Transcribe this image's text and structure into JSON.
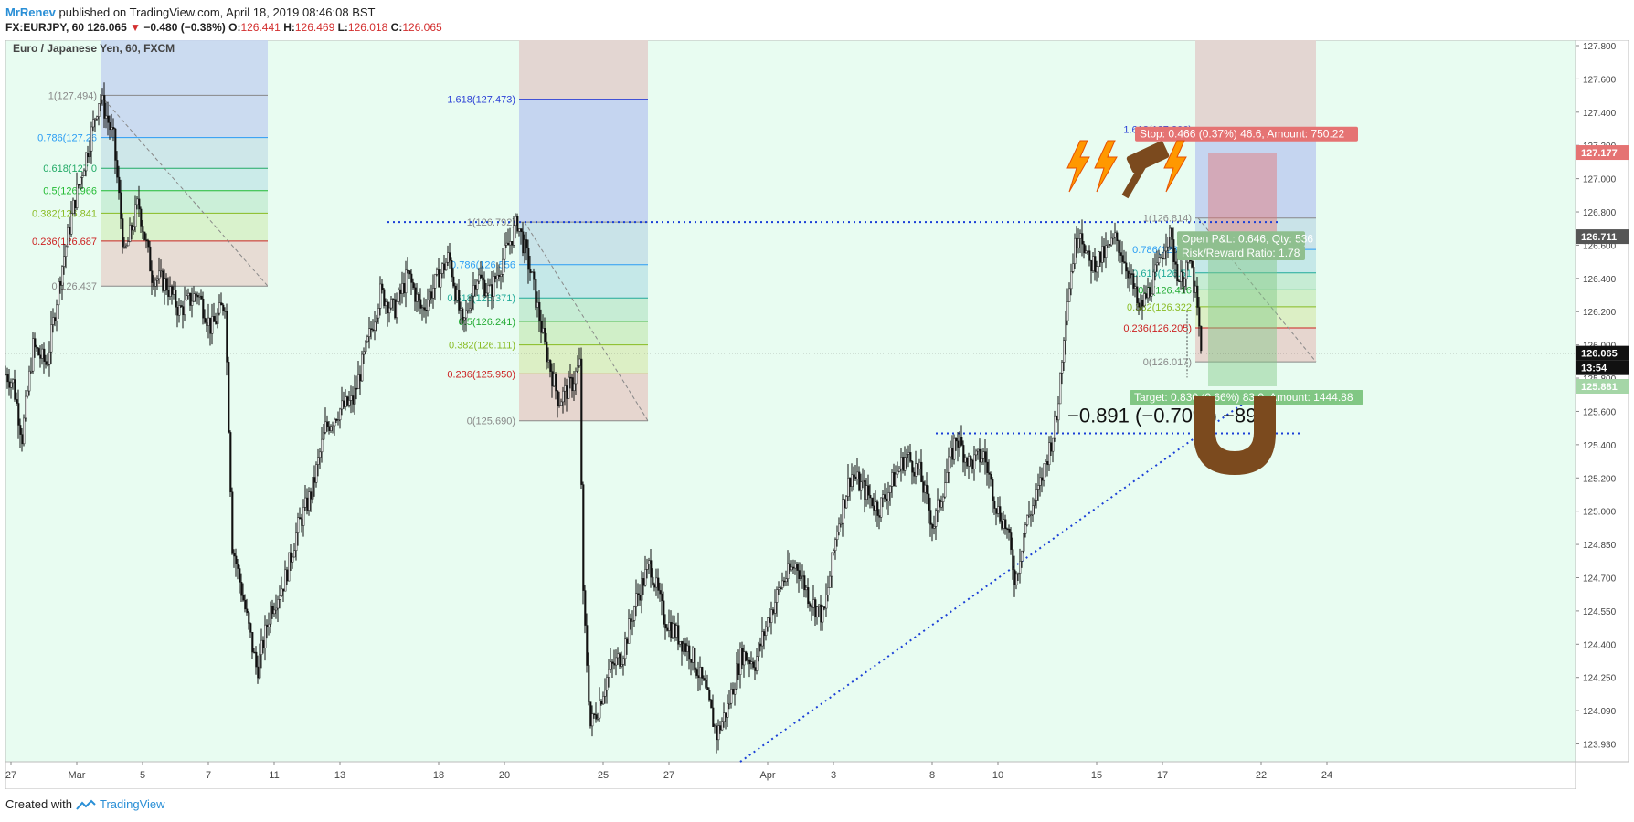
{
  "header": {
    "author": "MrRenev",
    "published": "published on TradingView.com, April 18, 2019 08:46:08 BST",
    "symbol": "FX:EURJPY, 60",
    "last": "126.065",
    "change": "−0.480 (−0.38%)",
    "o_label": "O:",
    "o": "126.441",
    "h_label": "H:",
    "h": "126.469",
    "l_label": "L:",
    "l": "126.018",
    "c_label": "C:",
    "c": "126.065"
  },
  "chart_data": {
    "type": "line",
    "title": "Euro / Japanese Yen, 60, FXCM",
    "colors": {
      "bg": "#e8fcf1",
      "candle": "#111111",
      "blue_dots": "#1a3fd6",
      "price_tag": "#111111"
    },
    "y_range": [
      123.8,
      127.8
    ],
    "y_ticks": [
      "127.800",
      "127.600",
      "127.400",
      "127.200",
      "127.000",
      "126.800",
      "126.600",
      "126.400",
      "126.200",
      "126.000",
      "125.800",
      "125.600",
      "125.400",
      "125.200",
      "125.000",
      "124.850",
      "124.700",
      "124.550",
      "124.400",
      "124.250",
      "124.090",
      "123.930"
    ],
    "x_ticks": [
      "27",
      "Mar",
      "5",
      "7",
      "11",
      "13",
      "18",
      "20",
      "25",
      "27",
      "Apr",
      "3",
      "8",
      "10",
      "15",
      "17",
      "22",
      "24"
    ],
    "price_anchors": [
      [
        0,
        125.95
      ],
      [
        8,
        125.9
      ],
      [
        18,
        125.6
      ],
      [
        30,
        126.1
      ],
      [
        45,
        126.0
      ],
      [
        60,
        126.5
      ],
      [
        75,
        126.9
      ],
      [
        90,
        127.2
      ],
      [
        103,
        127.494
      ],
      [
        118,
        127.25
      ],
      [
        130,
        126.6
      ],
      [
        145,
        126.9
      ],
      [
        160,
        126.5
      ],
      [
        175,
        126.45
      ],
      [
        190,
        126.3
      ],
      [
        210,
        126.4
      ],
      [
        225,
        126.2
      ],
      [
        240,
        126.35
      ],
      [
        248,
        125.0
      ],
      [
        260,
        124.7
      ],
      [
        275,
        124.3
      ],
      [
        290,
        124.65
      ],
      [
        305,
        124.8
      ],
      [
        320,
        125.1
      ],
      [
        335,
        125.3
      ],
      [
        350,
        125.65
      ],
      [
        365,
        125.75
      ],
      [
        380,
        125.8
      ],
      [
        395,
        126.1
      ],
      [
        410,
        126.4
      ],
      [
        425,
        126.3
      ],
      [
        440,
        126.5
      ],
      [
        455,
        126.3
      ],
      [
        470,
        126.45
      ],
      [
        485,
        126.6
      ],
      [
        500,
        126.2
      ],
      [
        515,
        126.5
      ],
      [
        530,
        126.4
      ],
      [
        545,
        126.6
      ],
      [
        560,
        126.792
      ],
      [
        575,
        126.5
      ],
      [
        590,
        126.1
      ],
      [
        605,
        125.8
      ],
      [
        620,
        125.9
      ],
      [
        628,
        126.0
      ],
      [
        632,
        124.7
      ],
      [
        640,
        124.0
      ],
      [
        648,
        124.1
      ],
      [
        660,
        124.3
      ],
      [
        675,
        124.4
      ],
      [
        690,
        124.7
      ],
      [
        705,
        124.9
      ],
      [
        720,
        124.6
      ],
      [
        735,
        124.5
      ],
      [
        750,
        124.4
      ],
      [
        765,
        124.2
      ],
      [
        778,
        123.95
      ],
      [
        790,
        124.1
      ],
      [
        805,
        124.4
      ],
      [
        820,
        124.35
      ],
      [
        835,
        124.6
      ],
      [
        850,
        124.8
      ],
      [
        865,
        124.9
      ],
      [
        880,
        124.7
      ],
      [
        895,
        124.6
      ],
      [
        910,
        125.1
      ],
      [
        925,
        125.4
      ],
      [
        940,
        125.3
      ],
      [
        955,
        125.2
      ],
      [
        970,
        125.35
      ],
      [
        985,
        125.5
      ],
      [
        1000,
        125.4
      ],
      [
        1015,
        125.1
      ],
      [
        1025,
        125.3
      ],
      [
        1040,
        125.6
      ],
      [
        1055,
        125.45
      ],
      [
        1070,
        125.5
      ],
      [
        1085,
        125.2
      ],
      [
        1095,
        125.1
      ],
      [
        1105,
        124.8
      ],
      [
        1115,
        125.1
      ],
      [
        1130,
        125.3
      ],
      [
        1140,
        125.5
      ],
      [
        1150,
        125.7
      ],
      [
        1160,
        126.3
      ],
      [
        1168,
        126.6
      ],
      [
        1175,
        126.78
      ],
      [
        1185,
        126.55
      ],
      [
        1200,
        126.6
      ],
      [
        1215,
        126.7
      ],
      [
        1230,
        126.5
      ],
      [
        1240,
        126.3
      ],
      [
        1250,
        126.4
      ],
      [
        1262,
        126.55
      ],
      [
        1272,
        126.75
      ],
      [
        1285,
        126.45
      ],
      [
        1295,
        126.6
      ],
      [
        1303,
        126.35
      ],
      [
        1308,
        126.065
      ]
    ],
    "fib_levels": [
      {
        "ratio": "1",
        "price": 127.494,
        "left": "1(127.494)"
      },
      {
        "ratio": "0.786",
        "price": 127.26,
        "left": "0.786(127.26"
      },
      {
        "ratio": "0.618",
        "price": 127.09,
        "left": "0.618(127.0"
      },
      {
        "ratio": "0.5",
        "price": 126.966,
        "left": "0.5(126.966"
      },
      {
        "ratio": "0.382",
        "price": 126.841,
        "left": "0.382(126.841"
      },
      {
        "ratio": "0.236",
        "price": 126.687,
        "left": "0.236(126.687"
      },
      {
        "ratio": "0",
        "price": 126.437,
        "left": "0(126.437"
      }
    ],
    "fib2": [
      {
        "ratio": "1.618",
        "price": 127.473,
        "label": "1.618(127.473)"
      },
      {
        "ratio": "1",
        "price": 126.792,
        "label": "1(126.792)"
      },
      {
        "ratio": "0.786",
        "price": 126.556,
        "label": "0.786(126.556"
      },
      {
        "ratio": "0.618",
        "price": 126.371,
        "label": "0.618(126.371)"
      },
      {
        "ratio": "0.5",
        "price": 126.241,
        "label": "0.5(126.241)"
      },
      {
        "ratio": "0.382",
        "price": 126.111,
        "label": "0.382(126.111)"
      },
      {
        "ratio": "0.236",
        "price": 125.95,
        "label": "0.236(125.950)"
      },
      {
        "ratio": "0",
        "price": 125.69,
        "label": "0(125.690)"
      }
    ],
    "fib3": [
      {
        "ratio": "1.618",
        "price": 127.306,
        "label": "1.618(127.306)"
      },
      {
        "ratio": "1",
        "price": 126.814,
        "label": "1(126.814)"
      },
      {
        "ratio": "0.786",
        "price": 126.64,
        "label": "0.786(126.64"
      },
      {
        "ratio": "0.618",
        "price": 126.51,
        "label": "0.618(126.51"
      },
      {
        "ratio": "0.5",
        "price": 126.416,
        "label": "0.5(126.416"
      },
      {
        "ratio": "0.382",
        "price": 126.322,
        "label": "0.382(126.322"
      },
      {
        "ratio": "0.236",
        "price": 126.205,
        "label": "0.236(126.205)"
      },
      {
        "ratio": "0",
        "price": 126.017,
        "label": "0(126.017)"
      }
    ],
    "position": {
      "stop_label": "Stop: 0.466 (0.37%) 46.6, Amount: 750.22",
      "open_pl_label": "Open P&L: 0.646, Qty: 536",
      "rr_label": "Risk/Reward Ratio: 1.78",
      "target_label": "Target: 0.830 (0.66%) 83.0, Amount: 1444.88",
      "stop_price": 127.177,
      "entry_price": 126.711,
      "target_price": 125.881
    },
    "price_tags": [
      {
        "price": 127.177,
        "label": "127.177",
        "bg": "#e57373"
      },
      {
        "price": 126.711,
        "label": "126.711",
        "bg": "#555555"
      },
      {
        "price": 126.065,
        "label": "126.065",
        "bg": "#111111"
      },
      {
        "label": "13:54",
        "bg": "#111111"
      },
      {
        "price": 125.881,
        "label": "125.881",
        "bg": "#a5d6a7"
      }
    ],
    "measure_text": "−0.891 (−0.70%) −89.1",
    "dotted_levels": [
      126.792,
      125.62
    ],
    "current_price": 126.065
  },
  "footer": {
    "created": "Created with",
    "brand": "TradingView"
  }
}
